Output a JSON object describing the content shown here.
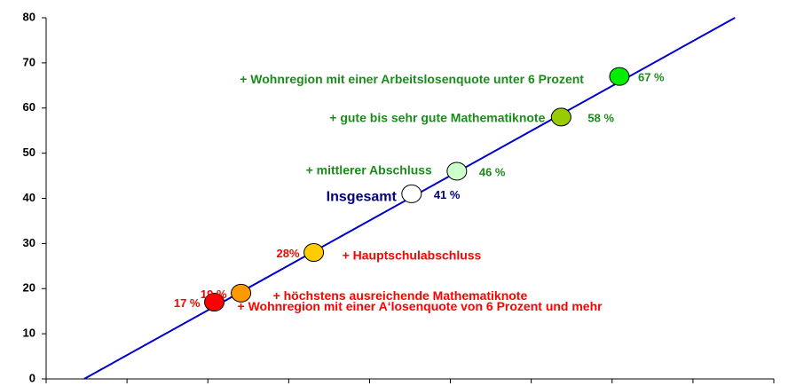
{
  "chart_data": {
    "type": "scatter",
    "ylim": [
      0,
      80
    ],
    "yticks": [
      0,
      10,
      20,
      30,
      40,
      50,
      60,
      70,
      80
    ],
    "xlim": [
      0,
      9
    ],
    "xticks": [
      0,
      1,
      2,
      3,
      4,
      5,
      6,
      7,
      8,
      9
    ],
    "trendline": {
      "x": [
        0.47,
        8.52
      ],
      "y": [
        0,
        80
      ],
      "color": "#0000cc"
    },
    "points": [
      {
        "x": 2.08,
        "y": 17,
        "label": "17 %",
        "annotation": "+ Wohnregion mit einer A‘losenquote von 6 Prozent  und mehr",
        "color": "#ff0000",
        "text_color": "#ff0000"
      },
      {
        "x": 2.41,
        "y": 19,
        "label": "19 %",
        "annotation": "+ höchstens ausreichende Mathematiknote",
        "color": "#ff9900",
        "text_color": "#ff0000"
      },
      {
        "x": 3.31,
        "y": 28,
        "label": "28%",
        "annotation": "+ Hauptschulabschluss",
        "color": "#ffcc00",
        "text_color": "#ff0000"
      },
      {
        "x": 4.52,
        "y": 41,
        "label": "41 %",
        "annotation": "Insgesamt",
        "color": "#ffffff",
        "text_color": "#000080"
      },
      {
        "x": 5.08,
        "y": 46,
        "label": "46 %",
        "annotation": "+ mittlerer Abschluss",
        "color": "#ccffcc",
        "text_color": "#1a8c1a"
      },
      {
        "x": 6.37,
        "y": 58,
        "label": "58 %",
        "annotation": "+ gute bis sehr gute Mathematiknote",
        "color": "#99cc00",
        "text_color": "#1a8c1a"
      },
      {
        "x": 7.09,
        "y": 67,
        "label": "67 %",
        "annotation": "+ Wohnregion mit einer Arbeitslosenquote unter 6 Prozent",
        "color": "#00ee00",
        "text_color": "#1a8c1a"
      }
    ]
  }
}
